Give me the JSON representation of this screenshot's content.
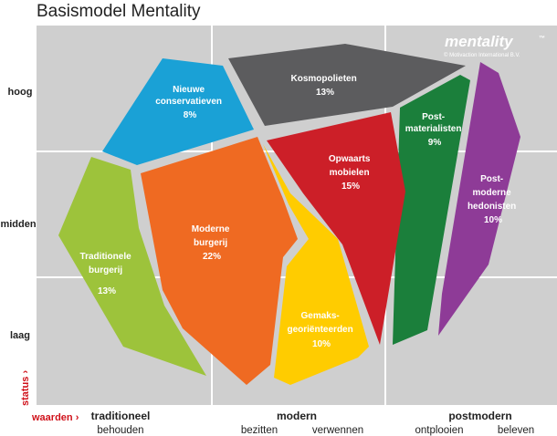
{
  "title": "Basismodel Mentality",
  "brand": {
    "name": "mentality",
    "trademark": "™",
    "copyright": "© Motivaction International B.V."
  },
  "y_axis": {
    "label": "status",
    "levels": [
      "hoog",
      "midden",
      "laag"
    ]
  },
  "x_axis": {
    "label": "waarden",
    "groups": [
      {
        "name": "traditioneel",
        "values": [
          "behouden"
        ]
      },
      {
        "name": "modern",
        "values": [
          "bezitten",
          "verwennen"
        ]
      },
      {
        "name": "postmodern",
        "values": [
          "ontplooien",
          "beleven"
        ]
      }
    ]
  },
  "colors": {
    "background_grid": "#cfcfcf",
    "grid_lines": "#ffffff",
    "axis_accent": "#d0121b"
  },
  "segments": [
    {
      "id": "nieuwe-conservatieven",
      "lines": [
        "Nieuwe",
        "conservatieven",
        "8%"
      ],
      "color": "#1aa1d6"
    },
    {
      "id": "kosmopolieten",
      "lines": [
        "Kosmopolieten",
        "13%"
      ],
      "color": "#5c5c5e"
    },
    {
      "id": "postmaterialisten",
      "lines": [
        "Post-",
        "materialisten",
        "9%"
      ],
      "color": "#1b7f3b"
    },
    {
      "id": "postmoderne-hedonisten",
      "lines": [
        "Post-",
        "moderne",
        "hedonisten",
        "10%"
      ],
      "color": "#8e3b97"
    },
    {
      "id": "opwaarts-mobielen",
      "lines": [
        "Opwaarts",
        "mobielen",
        "15%"
      ],
      "color": "#cc1f28"
    },
    {
      "id": "traditionele-burgerij",
      "lines": [
        "Traditionele",
        "burgerij",
        "13%"
      ],
      "color": "#9dc33b"
    },
    {
      "id": "moderne-burgerij",
      "lines": [
        "Moderne",
        "burgerij",
        "22%"
      ],
      "color": "#ef6a22"
    },
    {
      "id": "gemaksgeorienteerden",
      "lines": [
        "Gemaks-",
        "georiënteerden",
        "10%"
      ],
      "color": "#ffcc00"
    }
  ]
}
